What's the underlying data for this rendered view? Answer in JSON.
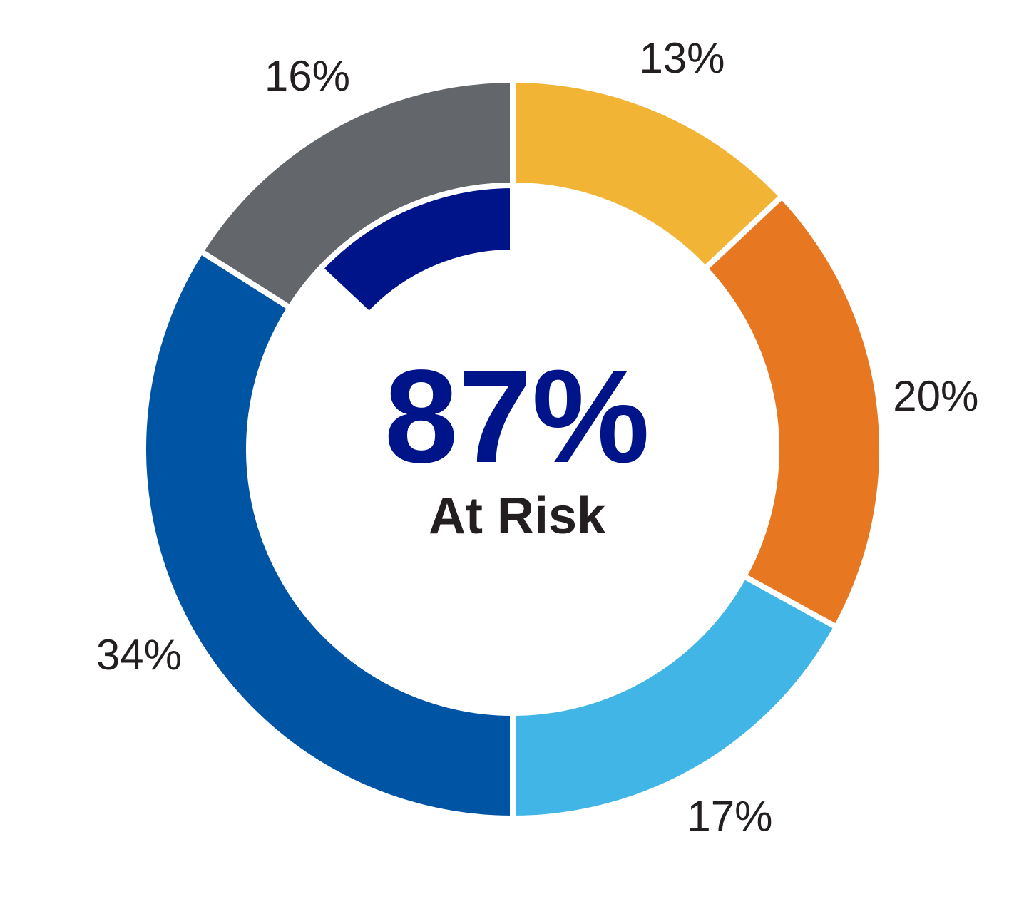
{
  "chart_data": {
    "type": "pie",
    "center_value": "87%",
    "center_label": "At Risk",
    "outer_ring": [
      {
        "label": "13%",
        "value": 13,
        "color": "#f1b434"
      },
      {
        "label": "20%",
        "value": 20,
        "color": "#e87722"
      },
      {
        "label": "17%",
        "value": 17,
        "color": "#41b6e6"
      },
      {
        "label": "34%",
        "value": 34,
        "color": "#0054a4"
      },
      {
        "label": "16%",
        "value": 16,
        "color": "#63666a"
      }
    ],
    "inner_ring": {
      "value": 87,
      "total": 100,
      "color": "#001489"
    }
  }
}
